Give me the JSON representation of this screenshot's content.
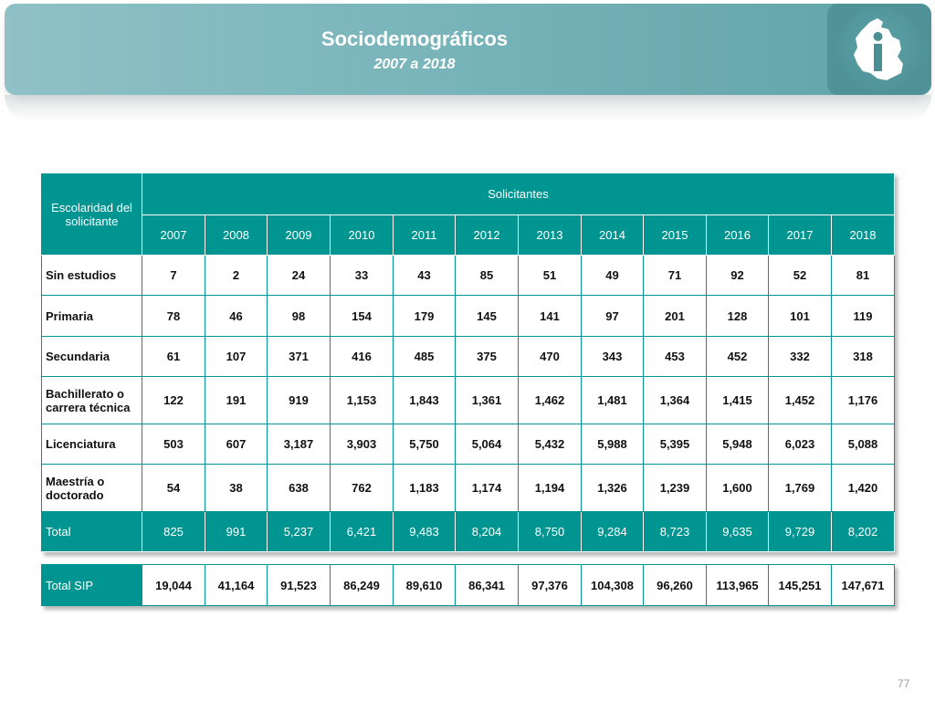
{
  "header": {
    "title": "Sociodemográficos",
    "subtitle": "2007 a 2018",
    "logo_icon": "cdmx-map-info-icon"
  },
  "table": {
    "row_header_label": "Escolaridad del solicitante",
    "group_header": "Solicitantes",
    "years": [
      "2007",
      "2008",
      "2009",
      "2010",
      "2011",
      "2012",
      "2013",
      "2014",
      "2015",
      "2016",
      "2017",
      "2018"
    ],
    "rows": [
      {
        "label": "Sin estudios",
        "values": [
          "7",
          "2",
          "24",
          "33",
          "43",
          "85",
          "51",
          "49",
          "71",
          "92",
          "52",
          "81"
        ]
      },
      {
        "label": "Primaria",
        "values": [
          "78",
          "46",
          "98",
          "154",
          "179",
          "145",
          "141",
          "97",
          "201",
          "128",
          "101",
          "119"
        ]
      },
      {
        "label": "Secundaria",
        "values": [
          "61",
          "107",
          "371",
          "416",
          "485",
          "375",
          "470",
          "343",
          "453",
          "452",
          "332",
          "318"
        ]
      },
      {
        "label": "Bachillerato o carrera técnica",
        "values": [
          "122",
          "191",
          "919",
          "1,153",
          "1,843",
          "1,361",
          "1,462",
          "1,481",
          "1,364",
          "1,415",
          "1,452",
          "1,176"
        ]
      },
      {
        "label": "Licenciatura",
        "values": [
          "503",
          "607",
          "3,187",
          "3,903",
          "5,750",
          "5,064",
          "5,432",
          "5,988",
          "5,395",
          "5,948",
          "6,023",
          "5,088"
        ]
      },
      {
        "label": "Maestría o doctorado",
        "values": [
          "54",
          "38",
          "638",
          "762",
          "1,183",
          "1,174",
          "1,194",
          "1,326",
          "1,239",
          "1,600",
          "1,769",
          "1,420"
        ]
      }
    ],
    "total": {
      "label": "Total",
      "values": [
        "825",
        "991",
        "5,237",
        "6,421",
        "9,483",
        "8,204",
        "8,750",
        "9,284",
        "8,723",
        "9,635",
        "9,729",
        "8,202"
      ]
    }
  },
  "sip": {
    "label": "Total SIP",
    "values": [
      "19,044",
      "41,164",
      "91,523",
      "86,249",
      "89,610",
      "86,341",
      "97,376",
      "104,308",
      "96,260",
      "113,965",
      "145,251",
      "147,671"
    ]
  },
  "page_number": "77",
  "colors": {
    "accent": "#009591",
    "banner": "#79b5ba",
    "logo_bg": "#4f9399"
  }
}
